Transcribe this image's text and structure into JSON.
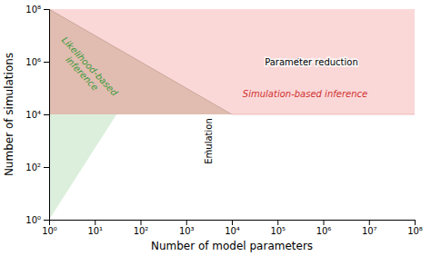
{
  "chart_data": {
    "type": "region",
    "xlabel": "Number of model parameters",
    "ylabel": "Number of simulations",
    "log": true,
    "xlim": [
      1,
      100000000
    ],
    "ylim": [
      1,
      100000000
    ],
    "xticks": [
      {
        "value": 1,
        "label": "10⁰"
      },
      {
        "value": 10,
        "label": "10¹"
      },
      {
        "value": 100,
        "label": "10²"
      },
      {
        "value": 1000,
        "label": "10³"
      },
      {
        "value": 10000,
        "label": "10⁴"
      },
      {
        "value": 100000,
        "label": "10⁵"
      },
      {
        "value": 1000000,
        "label": "10⁶"
      },
      {
        "value": 10000000,
        "label": "10⁷"
      },
      {
        "value": 100000000,
        "label": "10⁸"
      }
    ],
    "yticks": [
      {
        "value": 1,
        "label": "10⁰"
      },
      {
        "value": 100,
        "label": "10²"
      },
      {
        "value": 10000,
        "label": "10⁴"
      },
      {
        "value": 1000000,
        "label": "10⁶"
      },
      {
        "value": 100000000,
        "label": "10⁸"
      }
    ],
    "regions": [
      {
        "color": "#f8b8b8",
        "x": [
          1,
          100000000,
          100000000,
          1
        ],
        "y": [
          10000,
          10000,
          100000000,
          100000000
        ]
      },
      {
        "color": "#c8a088",
        "x": [
          1,
          10000,
          1
        ],
        "y": [
          100000000,
          10000,
          10000
        ]
      },
      {
        "color": "#a8d8a8",
        "x": [
          1,
          1,
          30.0
        ],
        "y": [
          1,
          10000,
          10000
        ]
      }
    ],
    "lines": [
      {
        "color": "#b09080",
        "x": [
          1.0,
          10000
        ],
        "y": [
          100000000,
          10000
        ]
      },
      {
        "color": "#e09090",
        "x": [
          10000,
          100000000
        ],
        "y": [
          10000,
          10000
        ]
      }
    ],
    "annotations": [
      {
        "text": "Likelihood-based\ninference",
        "x": 6.5,
        "y": 500000,
        "color": "#3a9a3a"
      },
      {
        "text": "Simulation-based inference",
        "x": 400000,
        "y": 60000,
        "color": "#d03030"
      },
      {
        "text": "Parameter reduction",
        "x": 550000,
        "y": 1000000,
        "arrow_x": 220000,
        "arrow_y": 1000000,
        "color": "black"
      },
      {
        "text": "Emulation",
        "x": 3000,
        "y": 130,
        "arrow_x": 3000,
        "arrow_y": 550,
        "color": "black"
      }
    ]
  }
}
